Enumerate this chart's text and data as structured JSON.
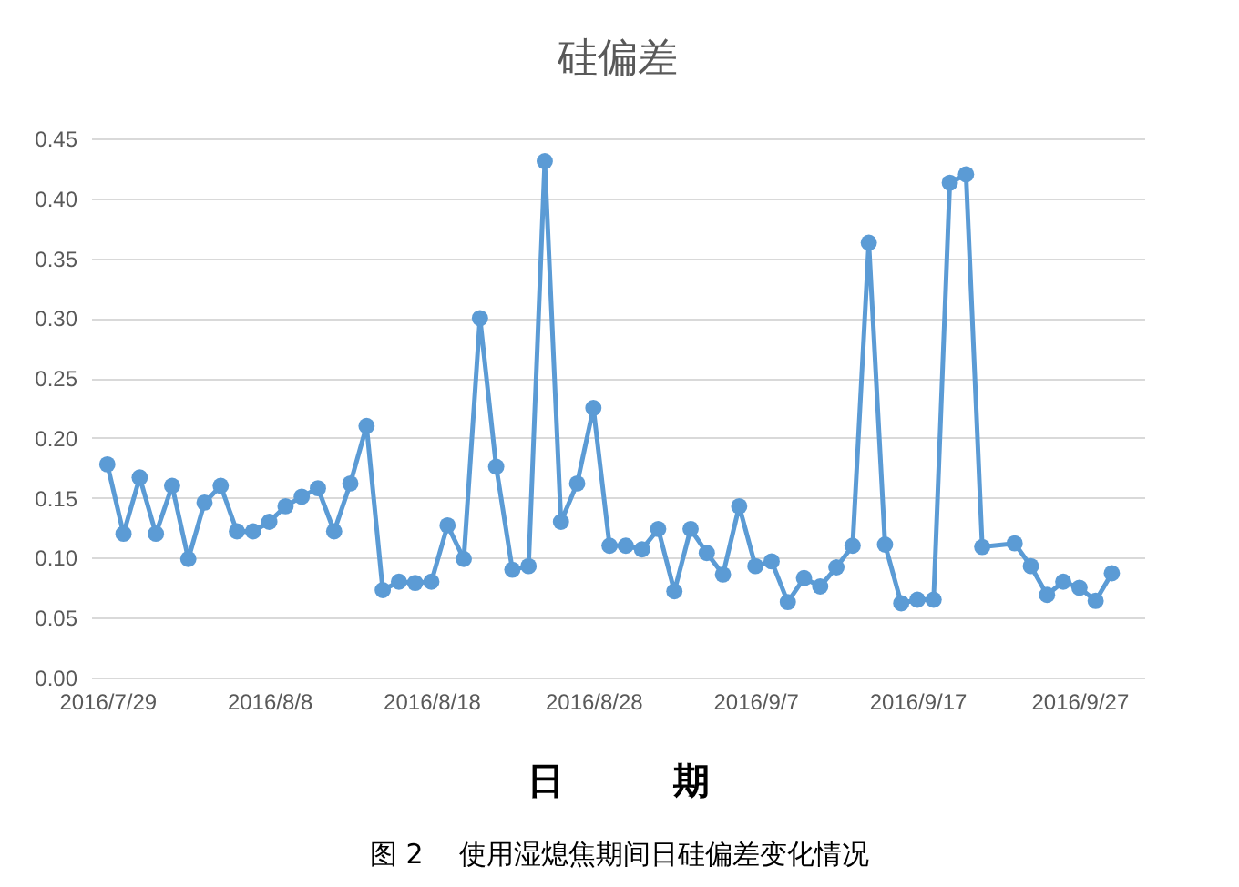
{
  "chart_data": {
    "type": "line",
    "title": "硅偏差",
    "xlabel": "日　　　期",
    "annotations": [
      "图 2　 使用湿熄焦期间日硅偏差变化情况"
    ],
    "x": [
      "2016-07-29",
      "2016-07-30",
      "2016-07-31",
      "2016-08-01",
      "2016-08-02",
      "2016-08-03",
      "2016-08-04",
      "2016-08-05",
      "2016-08-06",
      "2016-08-07",
      "2016-08-08",
      "2016-08-09",
      "2016-08-10",
      "2016-08-11",
      "2016-08-12",
      "2016-08-13",
      "2016-08-14",
      "2016-08-15",
      "2016-08-16",
      "2016-08-17",
      "2016-08-18",
      "2016-08-19",
      "2016-08-20",
      "2016-08-21",
      "2016-08-22",
      "2016-08-23",
      "2016-08-24",
      "2016-08-25",
      "2016-08-26",
      "2016-08-27",
      "2016-08-28",
      "2016-08-29",
      "2016-08-30",
      "2016-08-31",
      "2016-09-01",
      "2016-09-02",
      "2016-09-03",
      "2016-09-04",
      "2016-09-05",
      "2016-09-06",
      "2016-09-07",
      "2016-09-08",
      "2016-09-09",
      "2016-09-10",
      "2016-09-11",
      "2016-09-12",
      "2016-09-13",
      "2016-09-14",
      "2016-09-15",
      "2016-09-16",
      "2016-09-17",
      "2016-09-18",
      "2016-09-19",
      "2016-09-20",
      "2016-09-21",
      "2016-09-23",
      "2016-09-24",
      "2016-09-25",
      "2016-09-26",
      "2016-09-27",
      "2016-09-28",
      "2016-09-29"
    ],
    "series": [
      {
        "color": "#5b9bd5",
        "values": [
          0.178,
          0.12,
          0.167,
          0.12,
          0.16,
          0.099,
          0.146,
          0.16,
          0.122,
          0.122,
          0.13,
          0.143,
          0.151,
          0.158,
          0.122,
          0.162,
          0.21,
          0.073,
          0.08,
          0.079,
          0.08,
          0.127,
          0.099,
          0.3,
          0.176,
          0.09,
          0.093,
          0.431,
          0.13,
          0.162,
          0.225,
          0.11,
          0.11,
          0.107,
          0.124,
          0.072,
          0.124,
          0.104,
          0.086,
          0.143,
          0.093,
          0.097,
          0.063,
          0.083,
          0.076,
          0.092,
          0.11,
          0.363,
          0.111,
          0.062,
          0.065,
          0.065,
          0.413,
          0.42,
          0.109,
          0.112,
          0.093,
          0.069,
          0.08,
          0.075,
          0.064,
          0.087
        ]
      }
    ],
    "xlim": [
      "2016-07-28",
      "2016-10-01"
    ],
    "xticks": [
      {
        "value": "2016-07-29",
        "label": "2016/7/29"
      },
      {
        "value": "2016-08-08",
        "label": "2016/8/8"
      },
      {
        "value": "2016-08-18",
        "label": "2016/8/18"
      },
      {
        "value": "2016-08-28",
        "label": "2016/8/28"
      },
      {
        "value": "2016-09-07",
        "label": "2016/9/7"
      },
      {
        "value": "2016-09-17",
        "label": "2016/9/17"
      },
      {
        "value": "2016-09-27",
        "label": "2016/9/27"
      }
    ],
    "ylim": [
      0,
      0.45
    ],
    "yticks": [
      {
        "value": 0,
        "label": "0.00"
      },
      {
        "value": 0.05,
        "label": "0.05"
      },
      {
        "value": 0.1,
        "label": "0.10"
      },
      {
        "value": 0.15,
        "label": "0.15"
      },
      {
        "value": 0.2,
        "label": "0.20"
      },
      {
        "value": 0.25,
        "label": "0.25"
      },
      {
        "value": 0.3,
        "label": "0.30"
      },
      {
        "value": 0.35,
        "label": "0.35"
      },
      {
        "value": 0.4,
        "label": "0.40"
      },
      {
        "value": 0.45,
        "label": "0.45"
      }
    ],
    "grid": "y",
    "marker": "circle",
    "line_style": "solid",
    "legend": false
  }
}
